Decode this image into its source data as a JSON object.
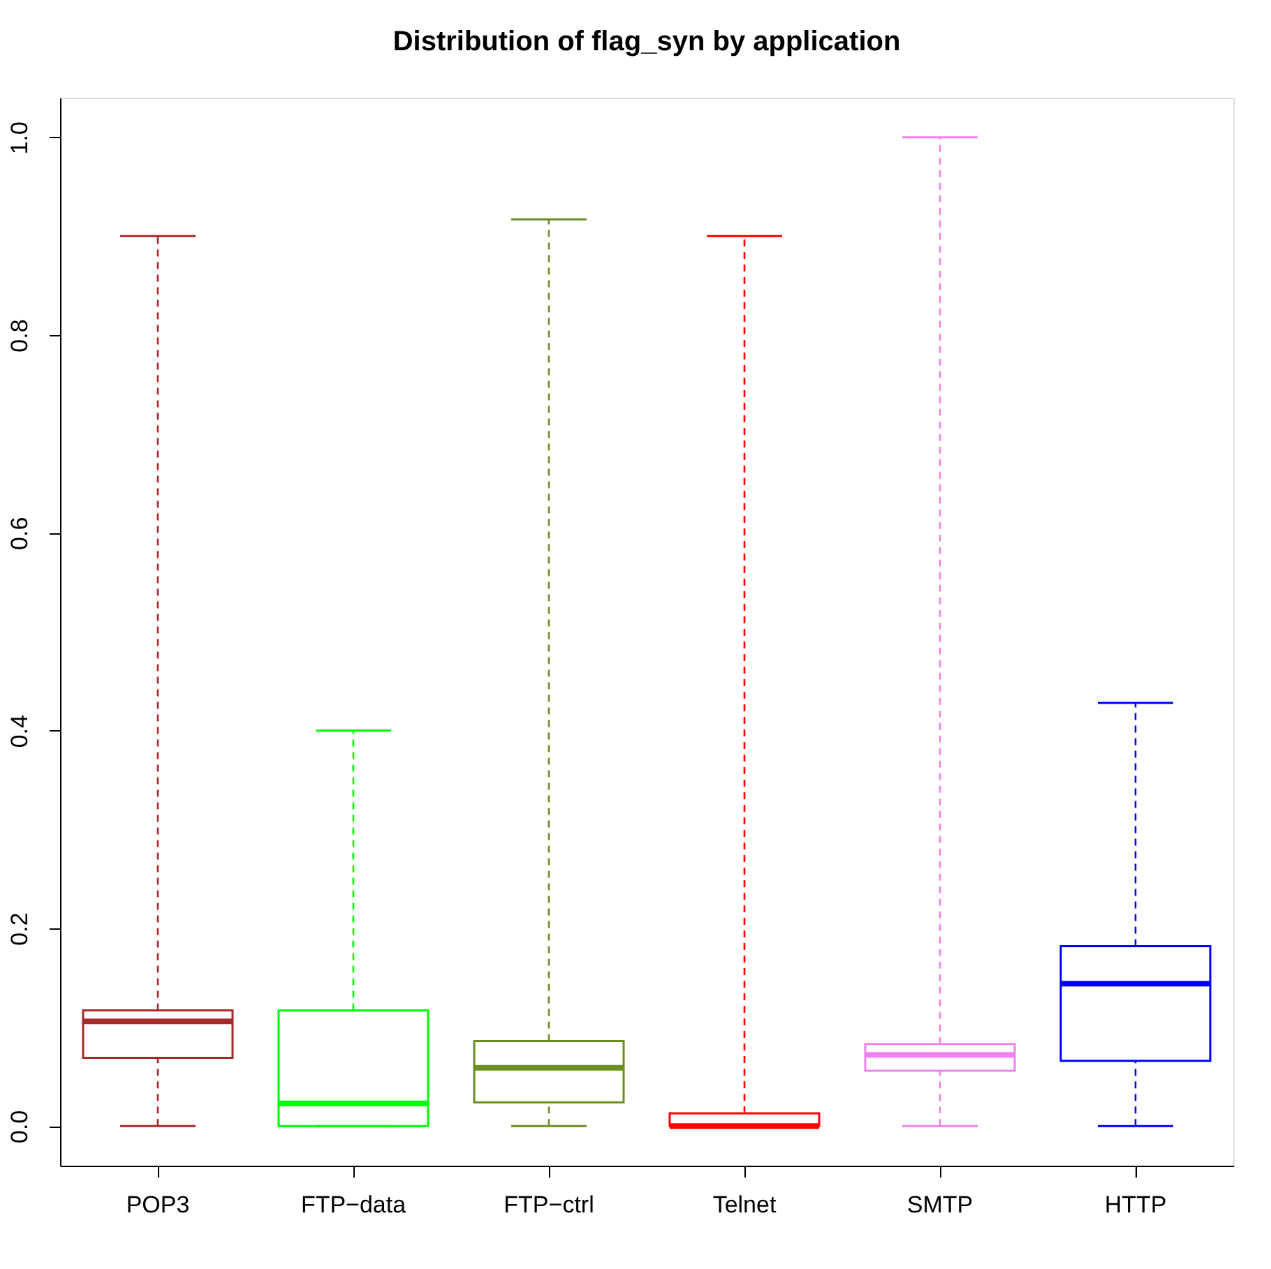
{
  "chart_data": {
    "type": "box",
    "title": "Distribution of flag_syn by application",
    "categories": [
      "POP3",
      "FTP−data",
      "FTP−ctrl",
      "Telnet",
      "SMTP",
      "HTTP"
    ],
    "colors": [
      "#a52a2a",
      "#00ff00",
      "#6b8e23",
      "#ff0000",
      "#ee82ee",
      "#0000ff"
    ],
    "boxes": [
      {
        "low": 0,
        "q1": 0.069,
        "median": 0.106,
        "q3": 0.117,
        "high": 0.9
      },
      {
        "low": 0,
        "q1": 0,
        "median": 0.023,
        "q3": 0.117,
        "high": 0.4
      },
      {
        "low": 0,
        "q1": 0.024,
        "median": 0.059,
        "q3": 0.086,
        "high": 0.917
      },
      {
        "low": 0,
        "q1": 0,
        "median": 0,
        "q3": 0.013,
        "high": 0.9
      },
      {
        "low": 0,
        "q1": 0.056,
        "median": 0.072,
        "q3": 0.083,
        "high": 1.0
      },
      {
        "low": 0,
        "q1": 0.066,
        "median": 0.144,
        "q3": 0.182,
        "high": 0.428
      }
    ],
    "ylim": [
      -0.04,
      1.04
    ],
    "yticks": [
      {
        "value": 0,
        "label": "0.0"
      },
      0.2,
      0.4,
      0.6,
      0.8,
      {
        "value": 1,
        "label": "1.0"
      }
    ],
    "grid": false,
    "line_style": "dashed"
  }
}
